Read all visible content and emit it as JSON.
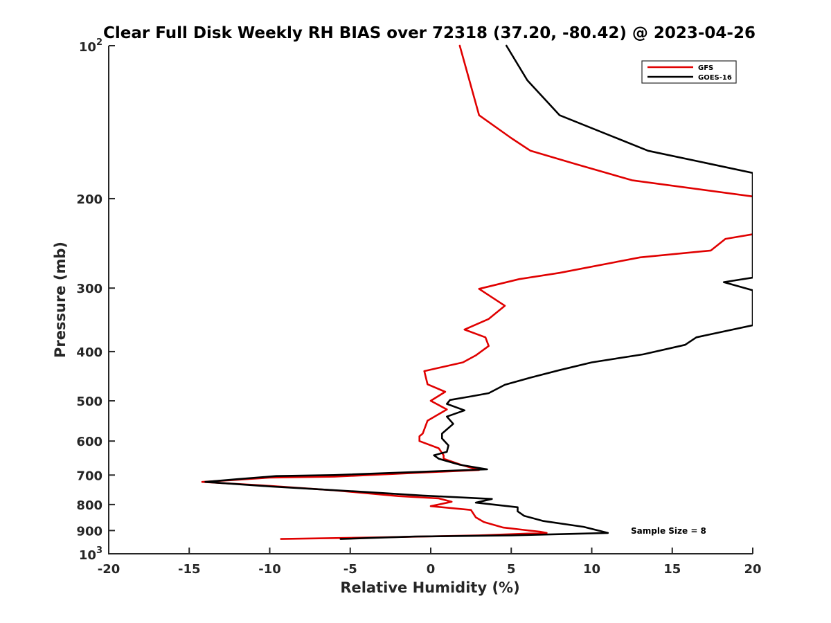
{
  "chart_data": {
    "type": "line",
    "title": "Clear Full Disk Weekly RH BIAS over 72318 (37.20, -80.42) @ 2023-04-26",
    "xlabel": "Relative Humidity (%)",
    "ylabel": "Pressure (mb)",
    "xlim": [
      -20,
      20
    ],
    "ylim": [
      100,
      1000
    ],
    "y_scale": "log",
    "y_reversed": true,
    "grid": false,
    "legend_position": "top-right",
    "x_ticks": [
      "-20",
      "-15",
      "-10",
      "-5",
      "0",
      "5",
      "10",
      "15",
      "20"
    ],
    "y_ticks": [
      {
        "value": 100,
        "base": "10",
        "exp": "2"
      },
      {
        "value": 200,
        "label": "200"
      },
      {
        "value": 300,
        "label": "300"
      },
      {
        "value": 400,
        "label": "400"
      },
      {
        "value": 500,
        "label": "500"
      },
      {
        "value": 600,
        "label": "600"
      },
      {
        "value": 700,
        "label": "700"
      },
      {
        "value": 800,
        "label": "800"
      },
      {
        "value": 900,
        "label": "900"
      },
      {
        "value": 1000,
        "base": "10",
        "exp": "3"
      }
    ],
    "annotation": "Sample Size = 8",
    "series": [
      {
        "name": "GFS",
        "color": "#e00000",
        "points": [
          [
            1.8,
            100
          ],
          [
            2.4,
            117
          ],
          [
            3.0,
            137
          ],
          [
            5.0,
            152
          ],
          [
            6.2,
            161
          ],
          [
            9.0,
            171
          ],
          [
            12.5,
            184
          ],
          [
            20.0,
            198
          ],
          [
            20.5,
            200
          ],
          [
            20.0,
            235
          ],
          [
            18.3,
            240
          ],
          [
            17.4,
            253
          ],
          [
            13.0,
            261
          ],
          [
            8.0,
            280
          ],
          [
            5.5,
            288
          ],
          [
            3.0,
            301
          ],
          [
            4.6,
            325
          ],
          [
            3.6,
            345
          ],
          [
            2.1,
            362
          ],
          [
            3.4,
            375
          ],
          [
            3.6,
            390
          ],
          [
            2.8,
            407
          ],
          [
            2.0,
            420
          ],
          [
            -0.4,
            437
          ],
          [
            -0.2,
            464
          ],
          [
            0.9,
            480
          ],
          [
            0.0,
            500
          ],
          [
            1.0,
            520
          ],
          [
            -0.2,
            547
          ],
          [
            -0.5,
            580
          ],
          [
            -0.7,
            587
          ],
          [
            -0.7,
            600
          ],
          [
            0.5,
            620
          ],
          [
            0.8,
            640
          ],
          [
            0.8,
            650
          ],
          [
            2.0,
            670
          ],
          [
            3.0,
            684
          ],
          [
            -6.0,
            705
          ],
          [
            -10.0,
            708
          ],
          [
            -12.0,
            715
          ],
          [
            -14.2,
            722
          ],
          [
            -10.0,
            735
          ],
          [
            -6.0,
            750
          ],
          [
            -2.0,
            770
          ],
          [
            0.5,
            778
          ],
          [
            1.3,
            790
          ],
          [
            0.0,
            806
          ],
          [
            2.5,
            820
          ],
          [
            2.8,
            848
          ],
          [
            3.3,
            866
          ],
          [
            4.5,
            888
          ],
          [
            6.8,
            905
          ],
          [
            7.2,
            910
          ],
          [
            3.0,
            920
          ],
          [
            -3.0,
            928
          ],
          [
            -9.3,
            935
          ]
        ]
      },
      {
        "name": "GOES-16",
        "color": "#000000",
        "points": [
          [
            4.7,
            100
          ],
          [
            6.0,
            117
          ],
          [
            8.0,
            137
          ],
          [
            13.5,
            161
          ],
          [
            20.0,
            178
          ],
          [
            20.0,
            286
          ],
          [
            18.2,
            292
          ],
          [
            20.0,
            303
          ],
          [
            20.0,
            355
          ],
          [
            16.5,
            375
          ],
          [
            15.8,
            388
          ],
          [
            13.2,
            405
          ],
          [
            10.0,
            420
          ],
          [
            8.0,
            435
          ],
          [
            6.2,
            450
          ],
          [
            4.6,
            465
          ],
          [
            3.6,
            483
          ],
          [
            2.5,
            490
          ],
          [
            1.2,
            498
          ],
          [
            1.0,
            507
          ],
          [
            2.1,
            522
          ],
          [
            1.0,
            537
          ],
          [
            1.4,
            555
          ],
          [
            0.7,
            580
          ],
          [
            0.7,
            593
          ],
          [
            1.1,
            612
          ],
          [
            1.0,
            630
          ],
          [
            0.2,
            640
          ],
          [
            0.5,
            650
          ],
          [
            1.8,
            668
          ],
          [
            3.5,
            682
          ],
          [
            -6.0,
            700
          ],
          [
            -9.6,
            703
          ],
          [
            -12.0,
            713
          ],
          [
            -14.0,
            722
          ],
          [
            -10.0,
            737
          ],
          [
            -4.0,
            756
          ],
          [
            -0.5,
            768
          ],
          [
            3.8,
            780
          ],
          [
            2.8,
            793
          ],
          [
            5.4,
            810
          ],
          [
            5.4,
            825
          ],
          [
            5.8,
            842
          ],
          [
            7.0,
            862
          ],
          [
            9.5,
            885
          ],
          [
            11.0,
            910
          ],
          [
            5.0,
            920
          ],
          [
            -1.0,
            925
          ],
          [
            -5.6,
            935
          ]
        ]
      }
    ]
  }
}
